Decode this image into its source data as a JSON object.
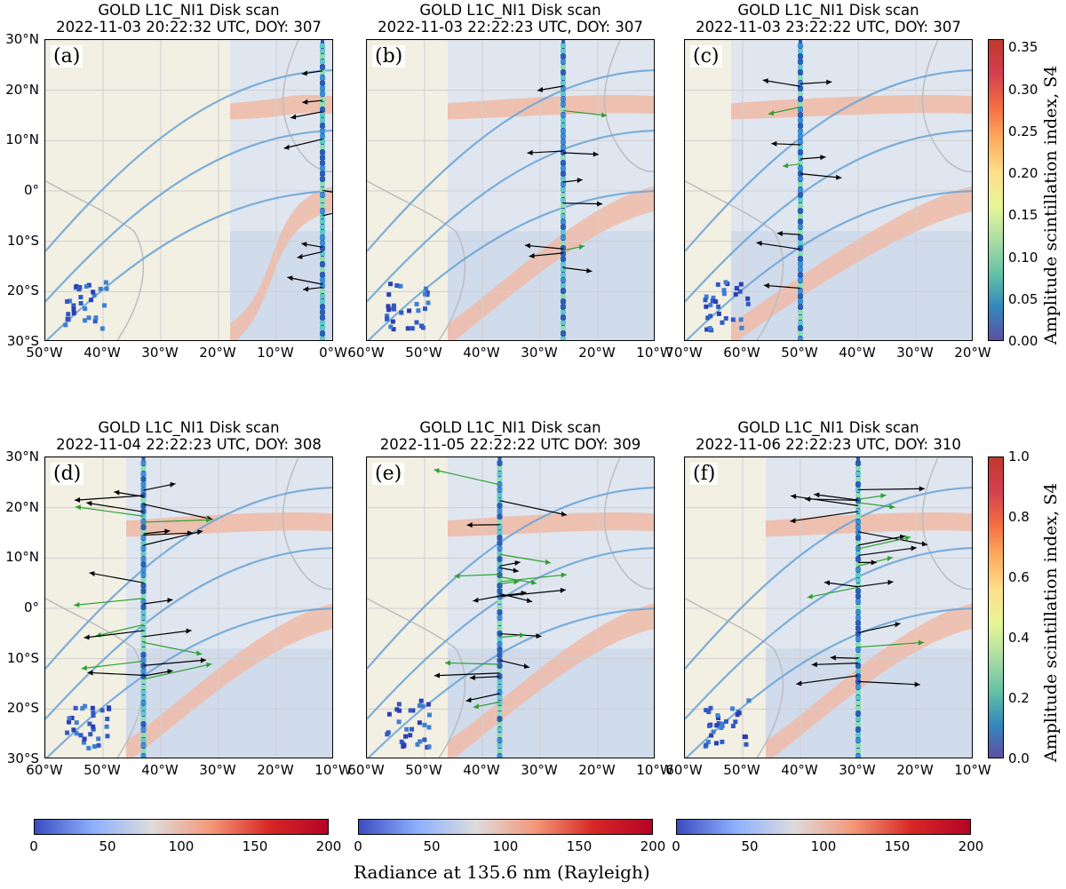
{
  "panels": [
    {
      "letter": "(a)",
      "title1": "GOLD L1C_NI1 Disk scan",
      "title2": "2022-11-03 20:22:32 UTC, DOY: 307",
      "xticks": [
        "50°W",
        "40°W",
        "30°W",
        "20°W",
        "10°W",
        "0°W"
      ],
      "lon_range": [
        -50,
        0
      ],
      "scan_lon": -2,
      "scan_start_lon": -18
    },
    {
      "letter": "(b)",
      "title1": "GOLD L1C_NI1 Disk scan",
      "title2": "2022-11-03 22:22:23 UTC, DOY: 307",
      "xticks": [
        "60°W",
        "50°W",
        "40°W",
        "30°W",
        "20°W",
        "10°W"
      ],
      "lon_range": [
        -60,
        -10
      ],
      "scan_lon": -26,
      "scan_start_lon": -46
    },
    {
      "letter": "(c)",
      "title1": "GOLD L1C_NI1 Disk scan",
      "title2": "2022-11-03 23:22:22 UTC, DOY: 307",
      "xticks": [
        "70°W",
        "60°W",
        "50°W",
        "40°W",
        "30°W",
        "20°W"
      ],
      "lon_range": [
        -70,
        -20
      ],
      "scan_lon": -50,
      "scan_start_lon": -62
    },
    {
      "letter": "(d)",
      "title1": "GOLD L1C_NI1 Disk scan",
      "title2": "2022-11-04 22:22:23 UTC, DOY: 308",
      "xticks": [
        "60°W",
        "50°W",
        "40°W",
        "30°W",
        "20°W",
        "10°W"
      ],
      "lon_range": [
        -60,
        -10
      ],
      "scan_lon": -43,
      "scan_start_lon": -46
    },
    {
      "letter": "(e)",
      "title1": "GOLD L1C_NI1 Disk scan",
      "title2": "2022-11-05 22:22:22 UTC  DOY: 309",
      "xticks": [
        "60°W",
        "50°W",
        "40°W",
        "30°W",
        "20°W",
        "10°W"
      ],
      "lon_range": [
        -60,
        -10
      ],
      "scan_lon": -37,
      "scan_start_lon": -46
    },
    {
      "letter": "(f)",
      "title1": "GOLD L1C_NI1 Disk scan",
      "title2": "2022-11-06 22:22:23 UTC, DOY: 310",
      "xticks": [
        "60°W",
        "50°W",
        "40°W",
        "30°W",
        "20°W",
        "10°W"
      ],
      "lon_range": [
        -60,
        -10
      ],
      "scan_lon": -30,
      "scan_start_lon": -46
    }
  ],
  "yticks": [
    "30°N",
    "20°N",
    "10°N",
    "0°",
    "10°S",
    "20°S",
    "30°S"
  ],
  "lat_range": [
    -30,
    30
  ],
  "s4_colorbar_top": {
    "ticks": [
      "0.35",
      "0.30",
      "0.25",
      "0.20",
      "0.15",
      "0.10",
      "0.05",
      "0.00"
    ],
    "max": 0.36
  },
  "s4_colorbar_bottom": {
    "ticks": [
      "1.0",
      "0.8",
      "0.6",
      "0.4",
      "0.2",
      "0.0"
    ],
    "max": 1.0
  },
  "s4_label": "Amplitude scintillation index, S4",
  "radiance_colorbar": {
    "ticks": [
      "0",
      "50",
      "100",
      "150",
      "200"
    ],
    "range": [
      0,
      200
    ]
  },
  "radiance_label": "Radiance at 135.6 nm (Rayleigh)",
  "colors": {
    "land": "#f2efe3",
    "ocean_low": "#c9d6ea",
    "ocean_mid": "#dfe6f0",
    "eia_crest": "#f1b9a4",
    "magnetic_lines": "#6fa6d6",
    "coast": "#bdbdbd",
    "arrow_black": "#000000",
    "arrow_green": "#2ca02c"
  }
}
